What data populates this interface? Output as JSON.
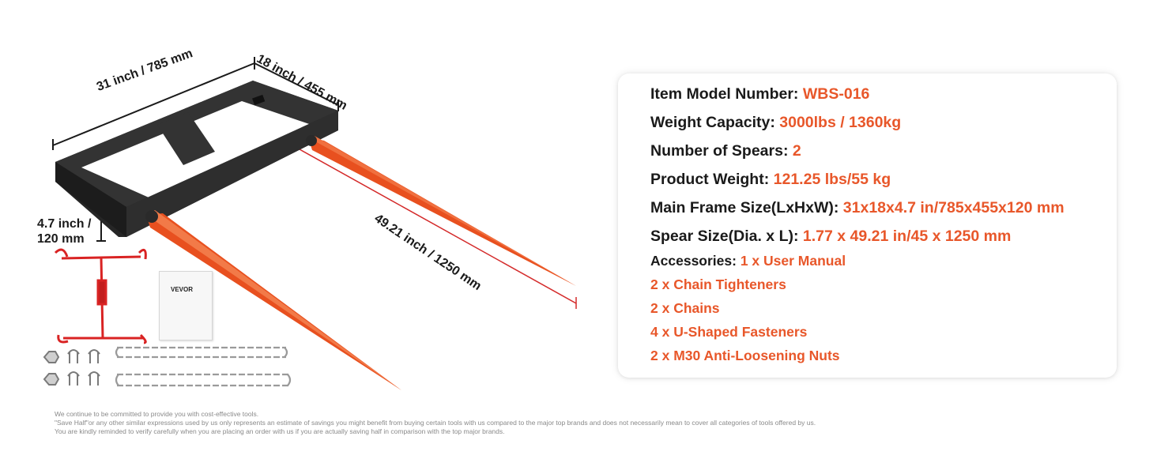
{
  "dimensions": {
    "width": "31 inch / 785 mm",
    "depth": "18 inch / 455 mm",
    "height_line1": "4.7 inch /",
    "height_line2": "120 mm",
    "spear_length": "49.21 inch / 1250 mm"
  },
  "manual": {
    "brand": "VEVOR"
  },
  "specs": {
    "model_label": "Item Model Number: ",
    "model_value": "WBS-016",
    "capacity_label": "Weight Capacity: ",
    "capacity_value": "3000lbs / 1360kg",
    "spears_label": "Number of Spears: ",
    "spears_value": "2",
    "weight_label": "Product Weight: ",
    "weight_value": "121.25 lbs/55 kg",
    "frame_label": "Main Frame Size(LxHxW): ",
    "frame_value": "31x18x4.7 in/785x455x120 mm",
    "spear_size_label": "Spear Size(Dia. x L): ",
    "spear_size_value": "1.77 x 49.21 in/45 x 1250 mm",
    "accessories_label": "Accessories: ",
    "accessories": [
      "1 x User Manual",
      "2 x Chain Tighteners",
      "2 x Chains",
      "4 x U-Shaped Fasteners",
      "2 x M30 Anti-Loosening Nuts"
    ]
  },
  "disclaimer": {
    "line1": "We continue to be committed to provide you with cost-effective tools.",
    "line2": "\"Save Half\"or any other similar expressions used by us only represents an estimate of savings you might benefit from buying certain tools with us compared to the major top brands and does not necessarily mean to cover all categories of tools offered by us.",
    "line3": "You are kindly reminded to verify carefully when you are placing an order with us if you are actually saving half in comparison with the top major brands."
  },
  "colors": {
    "accent": "#e8572a",
    "frame": "#2b2b2b",
    "dimension_line": "#d42a2a"
  }
}
